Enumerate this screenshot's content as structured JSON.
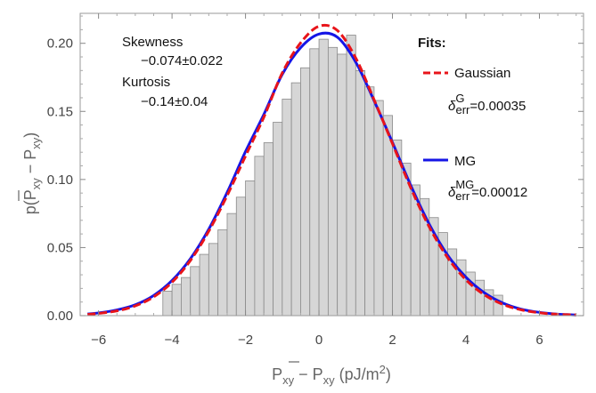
{
  "chart_data": {
    "type": "bar",
    "subtype": "histogram-with-fitted-curves",
    "xlim": [
      -6.5,
      7.2
    ],
    "ylim": [
      0,
      0.222
    ],
    "x_ticks": [
      -6,
      -4,
      -2,
      0,
      2,
      4,
      6
    ],
    "y_ticks": [
      0.0,
      0.05,
      0.1,
      0.15,
      0.2
    ],
    "y_tick_labels": [
      "0.00",
      "0.05",
      "0.10",
      "0.15",
      "0.20"
    ],
    "x_tick_labels": [
      "−6",
      "−4",
      "−2",
      "0",
      "2",
      "4",
      "6"
    ],
    "bin_width": 0.25,
    "bins": [
      {
        "x": -4.125,
        "y": 0.018
      },
      {
        "x": -3.875,
        "y": 0.023
      },
      {
        "x": -3.625,
        "y": 0.028
      },
      {
        "x": -3.375,
        "y": 0.036
      },
      {
        "x": -3.125,
        "y": 0.045
      },
      {
        "x": -2.875,
        "y": 0.053
      },
      {
        "x": -2.625,
        "y": 0.063
      },
      {
        "x": -2.375,
        "y": 0.075
      },
      {
        "x": -2.125,
        "y": 0.087
      },
      {
        "x": -1.875,
        "y": 0.099
      },
      {
        "x": -1.625,
        "y": 0.117
      },
      {
        "x": -1.375,
        "y": 0.127
      },
      {
        "x": -1.125,
        "y": 0.142
      },
      {
        "x": -0.875,
        "y": 0.159
      },
      {
        "x": -0.625,
        "y": 0.171
      },
      {
        "x": -0.375,
        "y": 0.182
      },
      {
        "x": -0.125,
        "y": 0.196
      },
      {
        "x": 0.125,
        "y": 0.203
      },
      {
        "x": 0.375,
        "y": 0.197
      },
      {
        "x": 0.625,
        "y": 0.192
      },
      {
        "x": 0.875,
        "y": 0.206
      },
      {
        "x": 1.125,
        "y": 0.18
      },
      {
        "x": 1.375,
        "y": 0.168
      },
      {
        "x": 1.625,
        "y": 0.158
      },
      {
        "x": 1.875,
        "y": 0.147
      },
      {
        "x": 2.125,
        "y": 0.129
      },
      {
        "x": 2.375,
        "y": 0.112
      },
      {
        "x": 2.625,
        "y": 0.096
      },
      {
        "x": 2.875,
        "y": 0.086
      },
      {
        "x": 3.125,
        "y": 0.072
      },
      {
        "x": 3.375,
        "y": 0.061
      },
      {
        "x": 3.625,
        "y": 0.049
      },
      {
        "x": 3.875,
        "y": 0.041
      },
      {
        "x": 4.125,
        "y": 0.032
      },
      {
        "x": 4.375,
        "y": 0.026
      },
      {
        "x": 4.625,
        "y": 0.019
      },
      {
        "x": 4.875,
        "y": 0.015
      }
    ],
    "series": [
      {
        "name": "Gaussian",
        "color": "#e8141a",
        "dashed": true,
        "x": [
          -6.3,
          -6,
          -5.5,
          -5,
          -4.5,
          -4,
          -3.5,
          -3,
          -2.5,
          -2,
          -1.5,
          -1,
          -0.5,
          0,
          0.5,
          1,
          1.5,
          2,
          2.5,
          3,
          3.5,
          4,
          4.5,
          5,
          5.5,
          6,
          6.5,
          7
        ],
        "values": [
          0.0009,
          0.0016,
          0.0035,
          0.0072,
          0.0138,
          0.0245,
          0.0405,
          0.062,
          0.0882,
          0.1172,
          0.1458,
          0.1782,
          0.2003,
          0.2125,
          0.2094,
          0.1892,
          0.1585,
          0.1263,
          0.0937,
          0.0652,
          0.0427,
          0.0263,
          0.0153,
          0.0083,
          0.0043,
          0.0021,
          0.001,
          0.0005
        ]
      },
      {
        "name": "MG",
        "color": "#1515e6",
        "dashed": false,
        "x": [
          -6.3,
          -6,
          -5.5,
          -5,
          -4.5,
          -4,
          -3.5,
          -3,
          -2.5,
          -2,
          -1.5,
          -1,
          -0.5,
          0,
          0.5,
          1,
          1.5,
          2,
          2.5,
          3,
          3.5,
          4,
          4.5,
          5,
          5.5,
          6,
          6.5,
          7
        ],
        "values": [
          0.0012,
          0.002,
          0.0042,
          0.008,
          0.0148,
          0.0258,
          0.0418,
          0.0635,
          0.0905,
          0.1205,
          0.1478,
          0.1772,
          0.1968,
          0.2068,
          0.2045,
          0.1862,
          0.1578,
          0.1272,
          0.0955,
          0.0672,
          0.0445,
          0.0282,
          0.0168,
          0.0093,
          0.0048,
          0.0024,
          0.0011,
          0.0005
        ]
      }
    ],
    "xlabel": {
      "base1": "P",
      "sub1": "xy",
      "minus": " − ",
      "base2": "P",
      "sub2": "xy",
      "unit": " (pJ/m",
      "sup": "2",
      "close": ")"
    },
    "ylabel": {
      "prefix": "p(P",
      "sub1": "xy",
      "minus": " − ",
      "base2": "P",
      "sub2": "xy",
      "close": ")"
    },
    "annotations": {
      "skewness_label": "Skewness",
      "skewness_value": "−0.074±0.022",
      "kurtosis_label": "Kurtosis",
      "kurtosis_value": "−0.14±0.04",
      "fits_title": "Fits:",
      "gaussian_label": "Gaussian",
      "gaussian_err_symbol": "δ",
      "gaussian_err_sup": "G",
      "gaussian_err_sub": "err",
      "gaussian_err_value": "=0.00035",
      "mg_label": "MG",
      "mg_err_symbol": "δ",
      "mg_err_sup": "MG",
      "mg_err_sub": "err",
      "mg_err_value": "=0.00012"
    },
    "colors": {
      "bar_fill": "#d6d6d6",
      "bar_stroke": "#8a8a8a",
      "frame": "#999999"
    },
    "grid": false,
    "legend_placement": "top-right"
  }
}
